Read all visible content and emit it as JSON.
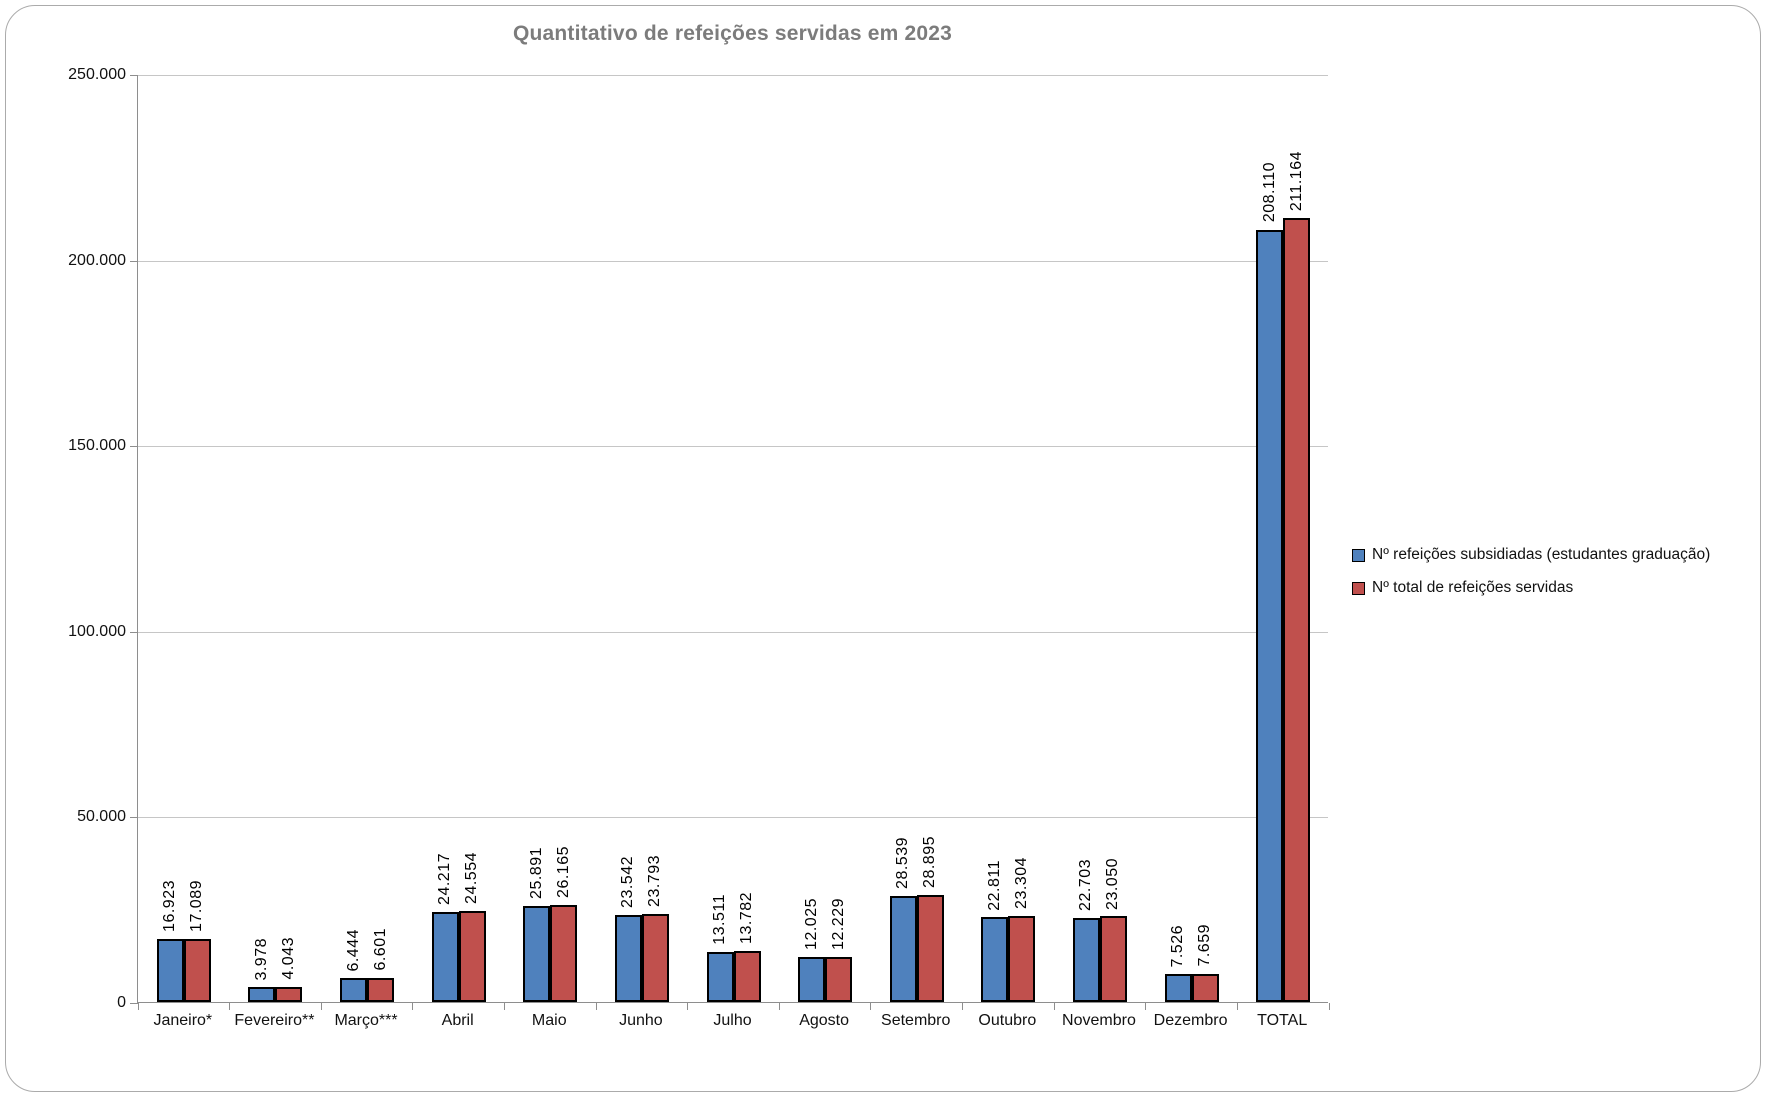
{
  "style": {
    "series_blue": "#4F81BD",
    "series_red": "#C0504D",
    "bar_border": "#000000",
    "gridline_color": "#C6C6C6",
    "axis_color": "#8E8E8E",
    "title_color": "#7C7C7C",
    "frame_border": "#ABABAB"
  },
  "chart_data": {
    "type": "bar",
    "title": "Quantitativo de refeições servidas em 2023",
    "categories": [
      "Janeiro*",
      "Fevereiro**",
      "Março***",
      "Abril",
      "Maio",
      "Junho",
      "Julho",
      "Agosto",
      "Setembro",
      "Outubro",
      "Novembro",
      "Dezembro",
      "TOTAL"
    ],
    "series": [
      {
        "name": "Nº refeições subsidiadas (estudantes graduação)",
        "color": "#4F81BD",
        "values": [
          16923,
          3978,
          6444,
          24217,
          25891,
          23542,
          13511,
          12025,
          28539,
          22811,
          22703,
          7526,
          208110
        ],
        "labels": [
          "16.923",
          "3.978",
          "6.444",
          "24.217",
          "25.891",
          "23.542",
          "13.511",
          "12.025",
          "28.539",
          "22.811",
          "22.703",
          "7.526",
          "208.110"
        ]
      },
      {
        "name": "Nº total de refeições servidas",
        "color": "#C0504D",
        "values": [
          17089,
          4043,
          6601,
          24554,
          26165,
          23793,
          13782,
          12229,
          28895,
          23304,
          23050,
          7659,
          211164
        ],
        "labels": [
          "17.089",
          "4.043",
          "6.601",
          "24.554",
          "26.165",
          "23.793",
          "13.782",
          "12.229",
          "28.895",
          "23.304",
          "23.050",
          "7.659",
          "211.164"
        ]
      }
    ],
    "ylim": [
      0,
      250000
    ],
    "y_ticks": [
      {
        "value": 0,
        "label": "0"
      },
      {
        "value": 50000,
        "label": "50.000"
      },
      {
        "value": 100000,
        "label": "100.000"
      },
      {
        "value": 150000,
        "label": "150.000"
      },
      {
        "value": 200000,
        "label": "200.000"
      },
      {
        "value": 250000,
        "label": "250.000"
      }
    ],
    "grid": "horizontal",
    "legend_position": "right",
    "data_labels": "rotated-vertical-above-bars"
  }
}
